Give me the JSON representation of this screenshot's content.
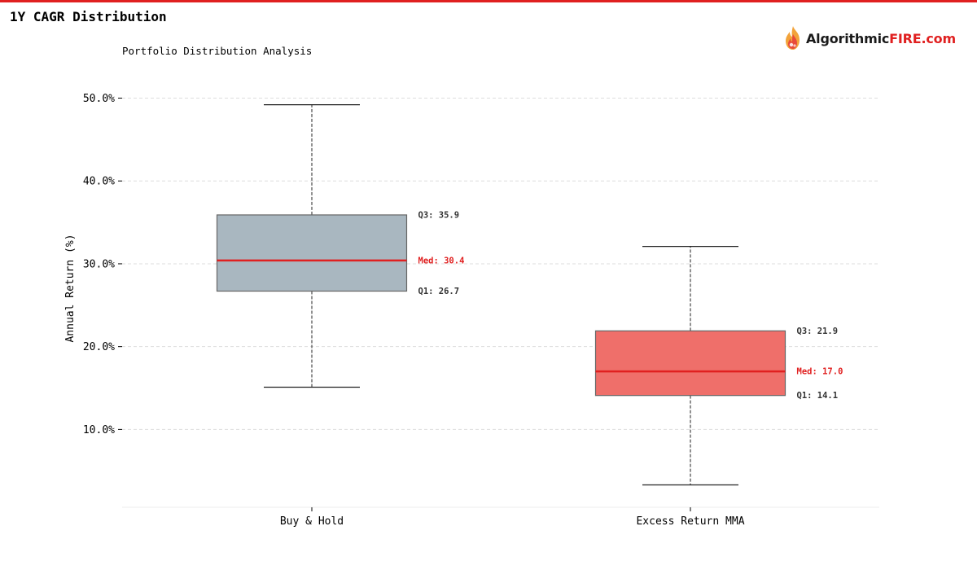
{
  "header": {
    "title": "1Y CAGR Distribution",
    "accent_color": "#e02020"
  },
  "logo": {
    "text_dark": "Algorithmic",
    "text_accent": "FIRE.com",
    "icon": "flame-icon"
  },
  "chart_data": {
    "type": "box",
    "title": "Portfolio Distribution Analysis",
    "xlabel": "",
    "ylabel": "Annual Return (%)",
    "ylim": [
      0.6,
      53.0
    ],
    "yticks": [
      10,
      20,
      30,
      40,
      50
    ],
    "ytick_labels": [
      "10.0%",
      "20.0%",
      "30.0%",
      "40.0%",
      "50.0%"
    ],
    "grid": true,
    "categories": [
      "Buy & Hold",
      "Excess Return MMA"
    ],
    "boxes": [
      {
        "name": "Buy & Hold",
        "whisker_low": 15.1,
        "q1": 26.7,
        "median": 30.4,
        "q3": 35.9,
        "whisker_high": 49.2,
        "color": "#a9b7c0",
        "labels": {
          "q3": "Q3: 35.9",
          "median": "Med: 30.4",
          "q1": "Q1: 26.7"
        }
      },
      {
        "name": "Excess Return MMA",
        "whisker_low": 3.3,
        "q1": 14.1,
        "median": 17.0,
        "q3": 21.9,
        "whisker_high": 32.1,
        "color": "#ef6f6a",
        "labels": {
          "q3": "Q3: 21.9",
          "median": "Med: 17.0",
          "q1": "Q1: 14.1"
        }
      }
    ],
    "median_color": "#e02020"
  }
}
